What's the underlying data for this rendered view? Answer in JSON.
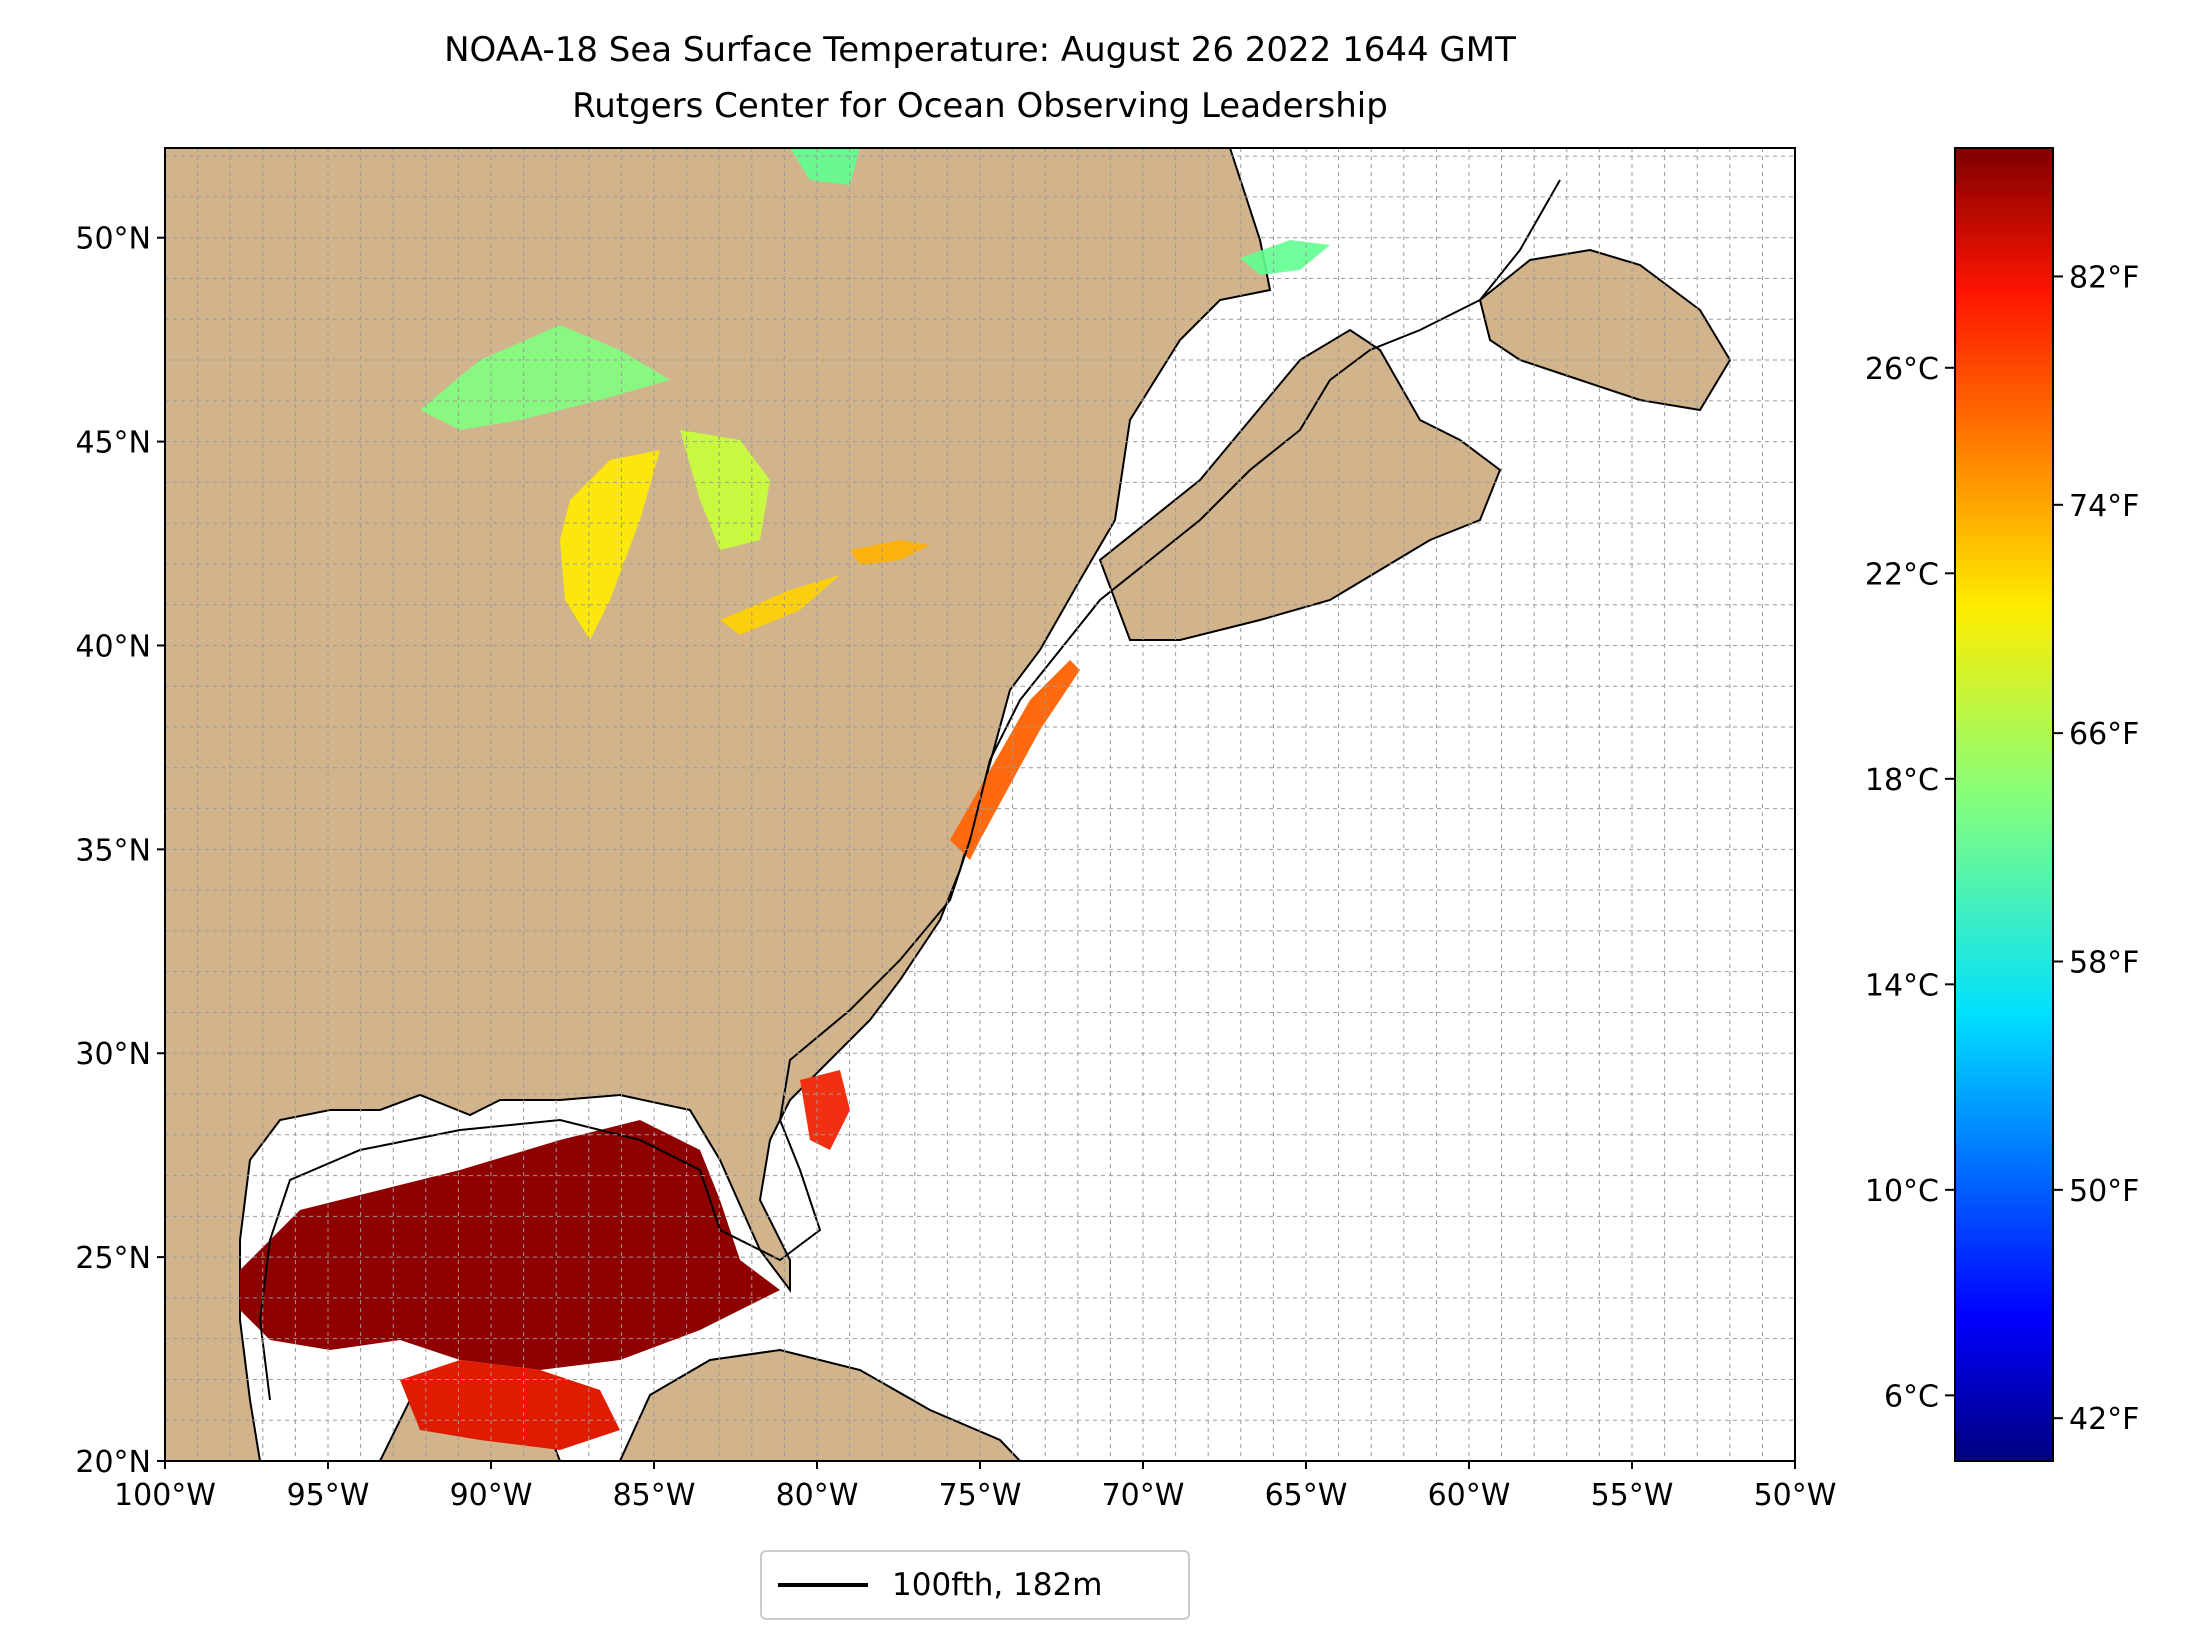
{
  "title": "NOAA-18 Sea Surface Temperature: August 26 2022 1644 GMT",
  "subtitle": "Rutgers Center for Ocean Observing Leadership",
  "map": {
    "lat_labels": [
      "20°N",
      "25°N",
      "30°N",
      "35°N",
      "40°N",
      "45°N",
      "50°N"
    ],
    "lat_values": [
      20,
      25,
      30,
      35,
      40,
      45,
      50
    ],
    "lon_labels": [
      "100°W",
      "95°W",
      "90°W",
      "85°W",
      "80°W",
      "75°W",
      "70°W",
      "65°W",
      "60°W",
      "55°W",
      "50°W"
    ],
    "lon_values": [
      -100,
      -95,
      -90,
      -85,
      -80,
      -75,
      -70,
      -65,
      -60,
      -55,
      -50
    ],
    "extent": {
      "lon_min": -100,
      "lon_max": -50,
      "lat_min": 20,
      "lat_max": 52.2
    },
    "gridlines": true,
    "land_color": "#d2b48c",
    "lake_color": "#97b6e1",
    "ocean_color": "#ffffff"
  },
  "colorbar": {
    "colormap": "jet",
    "celsius_labels": [
      "6°C",
      "10°C",
      "14°C",
      "18°C",
      "22°C",
      "26°C"
    ],
    "celsius_values": [
      6,
      10,
      14,
      18,
      22,
      26
    ],
    "fahrenheit_labels": [
      "42°F",
      "50°F",
      "58°F",
      "66°F",
      "74°F",
      "82°F"
    ],
    "fahrenheit_values": [
      42,
      50,
      58,
      66,
      74,
      82
    ],
    "range_f": [
      40.5,
      86.5
    ]
  },
  "legend": {
    "label": "100fth, 182m",
    "line_color": "#000000"
  }
}
